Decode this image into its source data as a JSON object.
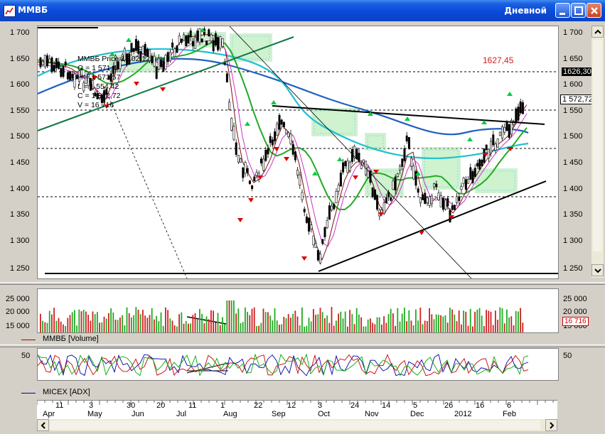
{
  "window": {
    "title": "MMBБ",
    "mode": "Дневной"
  },
  "info": {
    "name": "MMBБ Price 15.02.12",
    "open": "O = 1 571,4",
    "high": "H = 1 573,57",
    "low": "L = 1 554,42",
    "close": "C = 1 572,72",
    "volume": "V = 16 716"
  },
  "price_axis": {
    "ticks": [
      "1 700",
      "1 650",
      "1 600",
      "1 550",
      "1 500",
      "1 450",
      "1 400",
      "1 350",
      "1 300",
      "1 250"
    ]
  },
  "price_labels": {
    "level": "1627,45",
    "level_box": "1626,30",
    "last": "1 572,72"
  },
  "volume_panel": {
    "legend": "MMBБ [Volume]",
    "ticks": [
      "25 000",
      "20 000",
      "15 000"
    ],
    "last": "16 716"
  },
  "adx_panel": {
    "legend": "MICEX [ADX]",
    "tick": "50"
  },
  "time_axis": {
    "days": [
      "11",
      "3",
      "30",
      "20",
      "11",
      "1",
      "22",
      "12",
      "3",
      "24",
      "14",
      "5",
      "26",
      "16",
      "6"
    ],
    "months": [
      "Apr",
      "May",
      "Jun",
      "Jul",
      "Aug",
      "Sep",
      "Oct",
      "Nov",
      "Dec",
      "2012",
      "Feb"
    ]
  },
  "colors": {
    "titlebar": "#0a4ad8",
    "up": "#00cc44",
    "down": "#dd0000",
    "ma_blue": "#2060c0",
    "ma_cyan": "#20c0d0",
    "ma_green": "#20a020",
    "ma_brown": "#7a1010"
  }
}
